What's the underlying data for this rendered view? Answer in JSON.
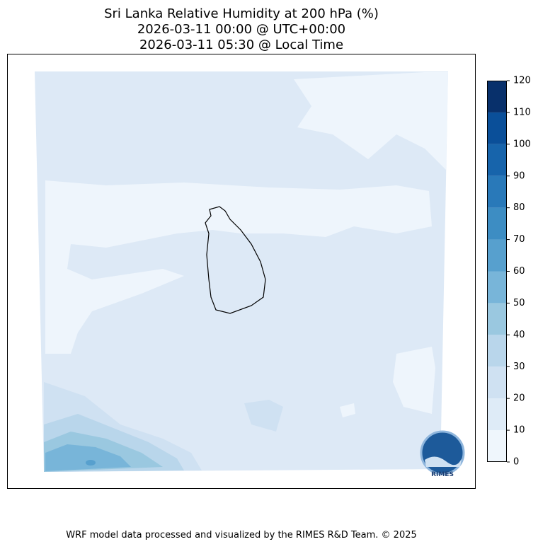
{
  "title": [
    "Sri Lanka Relative Humidity at 200 hPa (%)",
    "2026-03-11 00:00 @ UTC+00:00",
    "2026-03-11 05:30 @ Local Time"
  ],
  "colorbar": {
    "levels": [
      0,
      10,
      20,
      30,
      40,
      50,
      60,
      70,
      80,
      90,
      100,
      110,
      120
    ],
    "colors": [
      "#eff6fc",
      "#deebf7",
      "#cfe1f2",
      "#b9d6eb",
      "#9ac8e0",
      "#78b5d9",
      "#57a0ce",
      "#3d8dc3",
      "#2979b9",
      "#1764ab",
      "#0a4f99",
      "#08306b"
    ]
  },
  "logo": "RIMES",
  "footer": "WRF model data processed and visualized by the RIMES R&D Team. © 2025"
}
